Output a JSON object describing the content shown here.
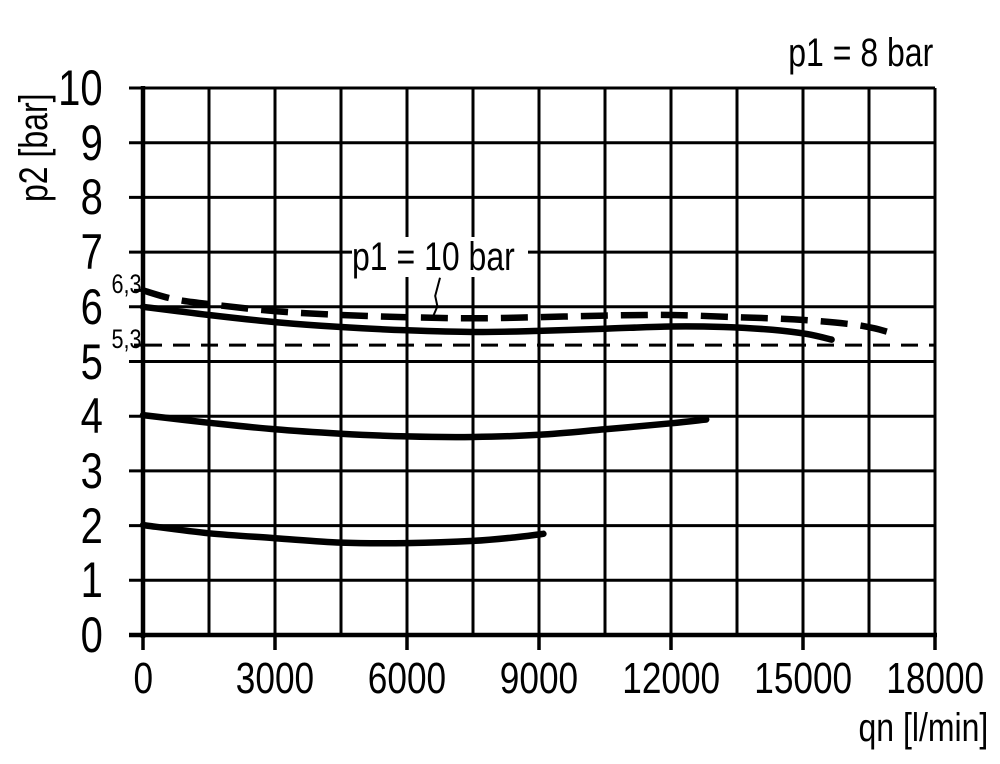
{
  "colors": {
    "ink": "#000000",
    "background": "#ffffff"
  },
  "chart_data": {
    "type": "line",
    "title": "",
    "xlabel": "qn [l/min]",
    "ylabel": "p2 [bar]",
    "grid": true,
    "legend": "none",
    "x_axis": {
      "min": 0,
      "max": 18000,
      "major_tick_step": 3000,
      "minor_grid_step": 1500,
      "tick_labels": [
        "0",
        "3000",
        "6000",
        "9000",
        "12000",
        "15000",
        "18000"
      ]
    },
    "y_axis": {
      "min": 0,
      "max": 10,
      "major_tick_step": 1,
      "tick_labels": [
        "0",
        "1",
        "2",
        "3",
        "4",
        "5",
        "6",
        "7",
        "8",
        "9",
        "10"
      ],
      "extra_ticks": [
        {
          "value": 6.3,
          "label": "6,3"
        },
        {
          "value": 5.3,
          "label": "5,3"
        }
      ]
    },
    "reference_lines": [
      {
        "y": 5.3,
        "style": "dashed-thin"
      }
    ],
    "annotations": [
      {
        "text": "p1 = 8 bar",
        "position": "top-right"
      },
      {
        "text": "p1 = 10 bar",
        "position": "above-dashed-curve",
        "leader": [
          [
            6750,
            6.53
          ],
          [
            6640,
            6.2
          ],
          [
            6690,
            6.01
          ],
          [
            6590,
            5.82
          ]
        ]
      }
    ],
    "series": [
      {
        "id": "upper-dashed-p1-10bar",
        "style": "dashed-thick",
        "points": [
          [
            0,
            6.3
          ],
          [
            700,
            6.14
          ],
          [
            1500,
            6.05
          ],
          [
            3000,
            5.92
          ],
          [
            4500,
            5.85
          ],
          [
            6000,
            5.81
          ],
          [
            7500,
            5.79
          ],
          [
            9000,
            5.81
          ],
          [
            10500,
            5.84
          ],
          [
            12000,
            5.85
          ],
          [
            13500,
            5.81
          ],
          [
            14800,
            5.77
          ],
          [
            16000,
            5.69
          ],
          [
            16600,
            5.61
          ],
          [
            17100,
            5.5
          ]
        ]
      },
      {
        "id": "upper-solid-p1-8bar",
        "style": "solid-thick",
        "points": [
          [
            0,
            6.0
          ],
          [
            1500,
            5.85
          ],
          [
            3000,
            5.72
          ],
          [
            4500,
            5.63
          ],
          [
            6000,
            5.57
          ],
          [
            7500,
            5.54
          ],
          [
            9000,
            5.56
          ],
          [
            10500,
            5.6
          ],
          [
            12000,
            5.64
          ],
          [
            13200,
            5.63
          ],
          [
            14300,
            5.58
          ],
          [
            15100,
            5.5
          ],
          [
            15650,
            5.4
          ]
        ]
      },
      {
        "id": "middle-solid-setting-4bar",
        "style": "solid-thick",
        "points": [
          [
            0,
            4.02
          ],
          [
            1500,
            3.88
          ],
          [
            3000,
            3.76
          ],
          [
            4500,
            3.68
          ],
          [
            6000,
            3.63
          ],
          [
            7500,
            3.62
          ],
          [
            9000,
            3.66
          ],
          [
            10500,
            3.76
          ],
          [
            12000,
            3.87
          ],
          [
            12800,
            3.94
          ]
        ]
      },
      {
        "id": "lower-solid-setting-2bar",
        "style": "solid-thick",
        "points": [
          [
            0,
            2.01
          ],
          [
            1500,
            1.86
          ],
          [
            3000,
            1.77
          ],
          [
            4500,
            1.69
          ],
          [
            6000,
            1.68
          ],
          [
            7500,
            1.72
          ],
          [
            8500,
            1.79
          ],
          [
            9100,
            1.85
          ]
        ]
      }
    ]
  }
}
